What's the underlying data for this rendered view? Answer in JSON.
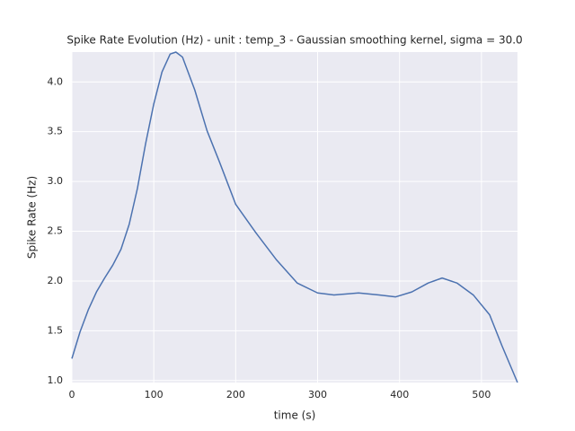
{
  "chart_data": {
    "type": "line",
    "title": "Spike Rate Evolution (Hz) - unit : temp_3 - Gaussian smoothing kernel, sigma = 30.0",
    "x_label": "time (s)",
    "y_label": "Spike Rate (Hz)",
    "x": [
      0,
      10,
      20,
      30,
      40,
      50,
      60,
      70,
      80,
      90,
      100,
      110,
      120,
      127,
      135,
      150,
      165,
      180,
      200,
      225,
      250,
      275,
      300,
      320,
      350,
      375,
      395,
      415,
      435,
      452,
      470,
      490,
      510,
      525,
      544
    ],
    "series": [
      {
        "name": "spike rate",
        "color": "#4c72b0",
        "values": [
          1.22,
          1.49,
          1.71,
          1.89,
          2.03,
          2.16,
          2.32,
          2.57,
          2.93,
          3.38,
          3.78,
          4.1,
          4.28,
          4.3,
          4.25,
          3.92,
          3.51,
          3.2,
          2.77,
          2.48,
          2.21,
          1.98,
          1.88,
          1.86,
          1.88,
          1.86,
          1.84,
          1.89,
          1.98,
          2.03,
          1.98,
          1.86,
          1.66,
          1.35,
          0.98
        ]
      }
    ],
    "xlim": [
      0,
      544
    ],
    "ylim": [
      0.98,
      4.3
    ],
    "xticks": [
      0,
      100,
      200,
      300,
      400,
      500
    ],
    "yticks": [
      {
        "value": 1.0,
        "label": "1.0"
      },
      1.5,
      {
        "value": 2.0,
        "label": "2.0"
      },
      2.5,
      {
        "value": 3.0,
        "label": "3.0"
      },
      3.5,
      {
        "value": 4.0,
        "label": "4.0"
      }
    ],
    "grid": true
  }
}
